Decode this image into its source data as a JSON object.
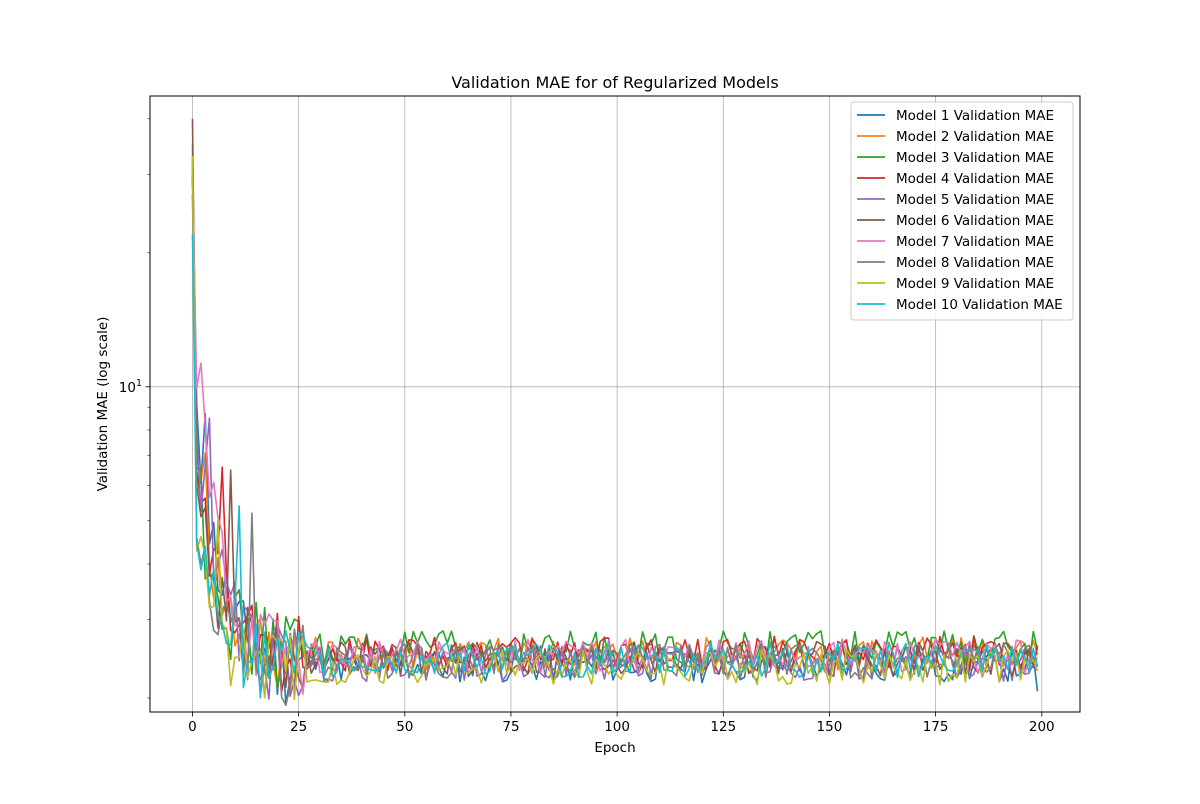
{
  "chart_data": {
    "type": "line",
    "title": "Validation MAE for of Regularized Models",
    "xlabel": "Epoch",
    "ylabel": "Validation MAE (log scale)",
    "yscale": "log",
    "xlim": [
      -10,
      209
    ],
    "ylim": [
      1.86,
      45.0
    ],
    "x_ticks": [
      0,
      25,
      50,
      75,
      100,
      125,
      150,
      175,
      200
    ],
    "x_tick_labels": [
      "0",
      "25",
      "50",
      "75",
      "100",
      "125",
      "150",
      "175",
      "200"
    ],
    "y_major_ticks": [
      10
    ],
    "y_major_tick_labels": [
      "10^1"
    ],
    "y_minor_ticks": [
      2,
      3,
      4,
      5,
      6,
      7,
      8,
      9,
      20,
      30,
      40
    ],
    "grid": true,
    "legend_position": "top-right",
    "epochs": 200,
    "series": [
      {
        "name": "Model 1 Validation MAE",
        "color": "#1f77b4",
        "start": 30.0,
        "peak": 8.7,
        "peak_epoch": 3,
        "plateau": 2.4,
        "min": 2.03,
        "last": 2.07
      },
      {
        "name": "Model 2 Validation MAE",
        "color": "#ff7f0e",
        "start": 33.0,
        "peak": 7.1,
        "peak_epoch": 3,
        "plateau": 2.55,
        "min": 2.16,
        "last": 2.5
      },
      {
        "name": "Model 3 Validation MAE",
        "color": "#2ca02c",
        "start": 27.0,
        "peak": 6.5,
        "peak_epoch": 2,
        "plateau": 2.62,
        "min": 2.22,
        "last": 2.56
      },
      {
        "name": "Model 4 Validation MAE",
        "color": "#d62728",
        "start": 30.0,
        "peak": 6.6,
        "peak_epoch": 7,
        "plateau": 2.55,
        "min": 2.22,
        "last": 2.62
      },
      {
        "name": "Model 5 Validation MAE",
        "color": "#9467bd",
        "start": 35.0,
        "peak": 8.5,
        "peak_epoch": 4,
        "plateau": 2.42,
        "min": 2.18,
        "last": 2.3
      },
      {
        "name": "Model 6 Validation MAE",
        "color": "#8c564b",
        "start": 40.0,
        "peak": 6.5,
        "peak_epoch": 9,
        "plateau": 2.48,
        "min": 2.2,
        "last": 2.37
      },
      {
        "name": "Model 7 Validation MAE",
        "color": "#e377c2",
        "start": 30.0,
        "peak": 11.3,
        "peak_epoch": 2,
        "plateau": 2.52,
        "min": 2.16,
        "last": 2.45
      },
      {
        "name": "Model 8 Validation MAE",
        "color": "#7f7f7f",
        "start": 32.0,
        "peak": 5.2,
        "peak_epoch": 14,
        "plateau": 2.45,
        "min": 2.18,
        "last": 2.45
      },
      {
        "name": "Model 9 Validation MAE",
        "color": "#bcbd22",
        "start": 33.0,
        "peak": 5.0,
        "peak_epoch": 6,
        "plateau": 2.38,
        "min": 2.1,
        "last": 2.3
      },
      {
        "name": "Model 10 Validation MAE",
        "color": "#17becf",
        "start": 22.0,
        "peak": 5.4,
        "peak_epoch": 11,
        "plateau": 2.47,
        "min": 2.16,
        "last": 2.35
      }
    ]
  }
}
